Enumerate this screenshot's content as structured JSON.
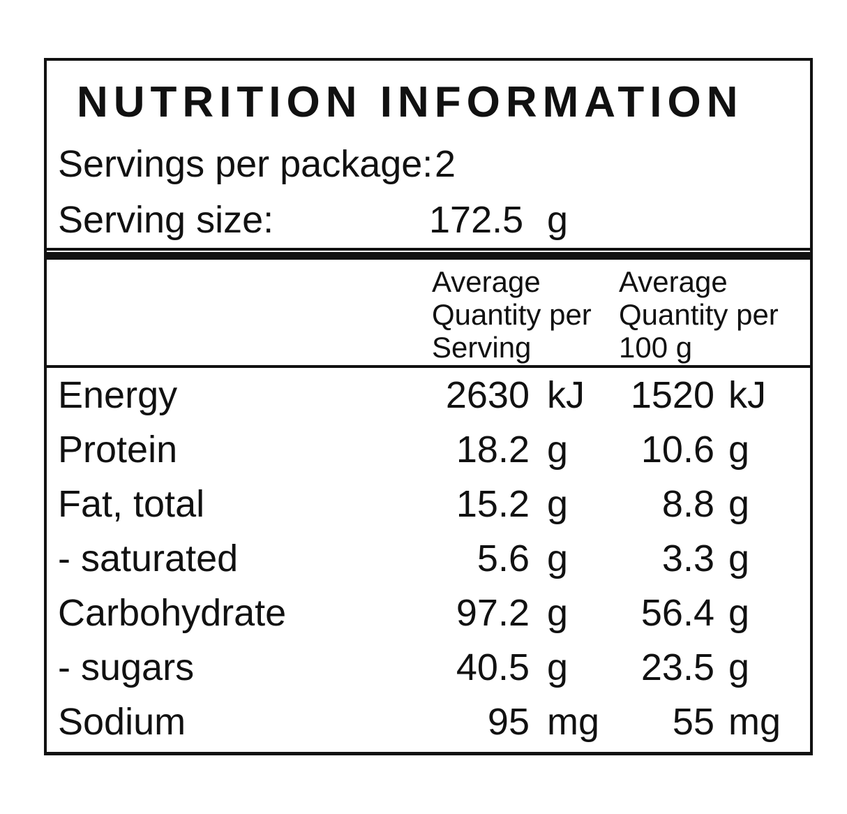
{
  "panel": {
    "title": "NUTRITION INFORMATION",
    "servings_per_package": {
      "label": "Servings per package:",
      "value": "2"
    },
    "serving_size": {
      "label": "Serving size:",
      "value": "172.5",
      "unit": "g"
    },
    "columns": {
      "per_serving": "Average Quantity per Serving",
      "per_100g": "Average Quantity per 100 g"
    },
    "rows": [
      {
        "nutrient": "Energy",
        "per_serving": "2630",
        "per_serving_unit": "kJ",
        "per_100g": "1520",
        "per_100g_unit": "kJ"
      },
      {
        "nutrient": "Protein",
        "per_serving": "18.2",
        "per_serving_unit": "g",
        "per_100g": "10.6",
        "per_100g_unit": "g"
      },
      {
        "nutrient": "Fat, total",
        "per_serving": "15.2",
        "per_serving_unit": "g",
        "per_100g": "8.8",
        "per_100g_unit": "g"
      },
      {
        "nutrient": "- saturated",
        "per_serving": "5.6",
        "per_serving_unit": "g",
        "per_100g": "3.3",
        "per_100g_unit": "g"
      },
      {
        "nutrient": "Carbohydrate",
        "per_serving": "97.2",
        "per_serving_unit": "g",
        "per_100g": "56.4",
        "per_100g_unit": "g"
      },
      {
        "nutrient": "- sugars",
        "per_serving": "40.5",
        "per_serving_unit": "g",
        "per_100g": "23.5",
        "per_100g_unit": "g"
      },
      {
        "nutrient": "Sodium",
        "per_serving": "95",
        "per_serving_unit": "mg",
        "per_100g": "55",
        "per_100g_unit": "mg"
      }
    ],
    "colors": {
      "border": "#111111",
      "text": "#111111",
      "background": "#ffffff"
    }
  }
}
